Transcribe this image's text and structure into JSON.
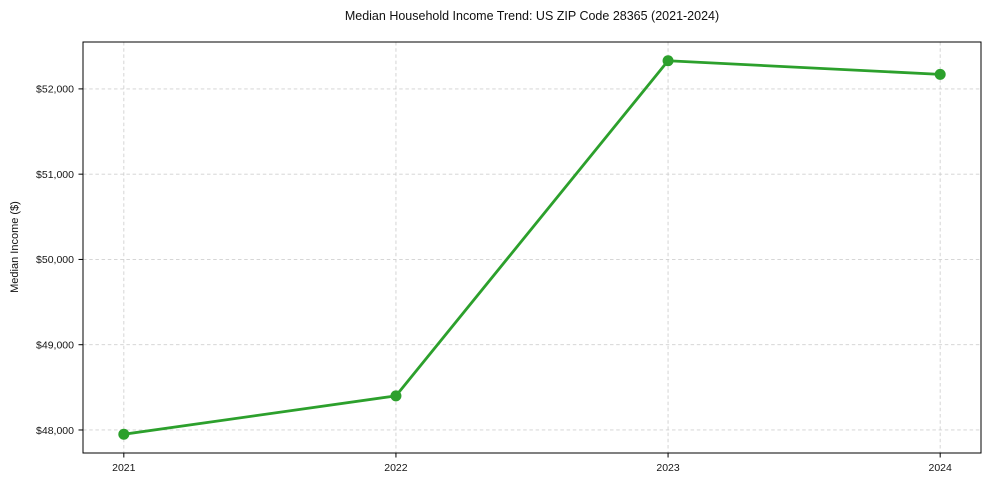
{
  "chart_data": {
    "type": "line",
    "title": "Median Household Income Trend: US ZIP Code 28365 (2021-2024)",
    "xlabel": "",
    "ylabel": "Median Income ($)",
    "x": [
      2021,
      2022,
      2023,
      2024
    ],
    "x_tick_labels": [
      "2021",
      "2022",
      "2023",
      "2024"
    ],
    "series": [
      {
        "name": "Median Household Income",
        "values": [
          47950,
          48400,
          52330,
          52170
        ]
      }
    ],
    "y_ticks": [
      48000,
      49000,
      50000,
      51000,
      52000
    ],
    "y_tick_labels": [
      "$48,000",
      "$49,000",
      "$50,000",
      "$51,000",
      "$52,000"
    ],
    "xlim": [
      2020.85,
      2024.15
    ],
    "ylim": [
      47730,
      52550
    ],
    "grid": true,
    "grid_style": "dashed",
    "legend": "none",
    "line_color": "#2ca02c",
    "marker": "circle",
    "marker_color": "#2ca02c",
    "grid_color": "#d0d0d0",
    "spine_color": "#000000",
    "background": "#ffffff"
  }
}
